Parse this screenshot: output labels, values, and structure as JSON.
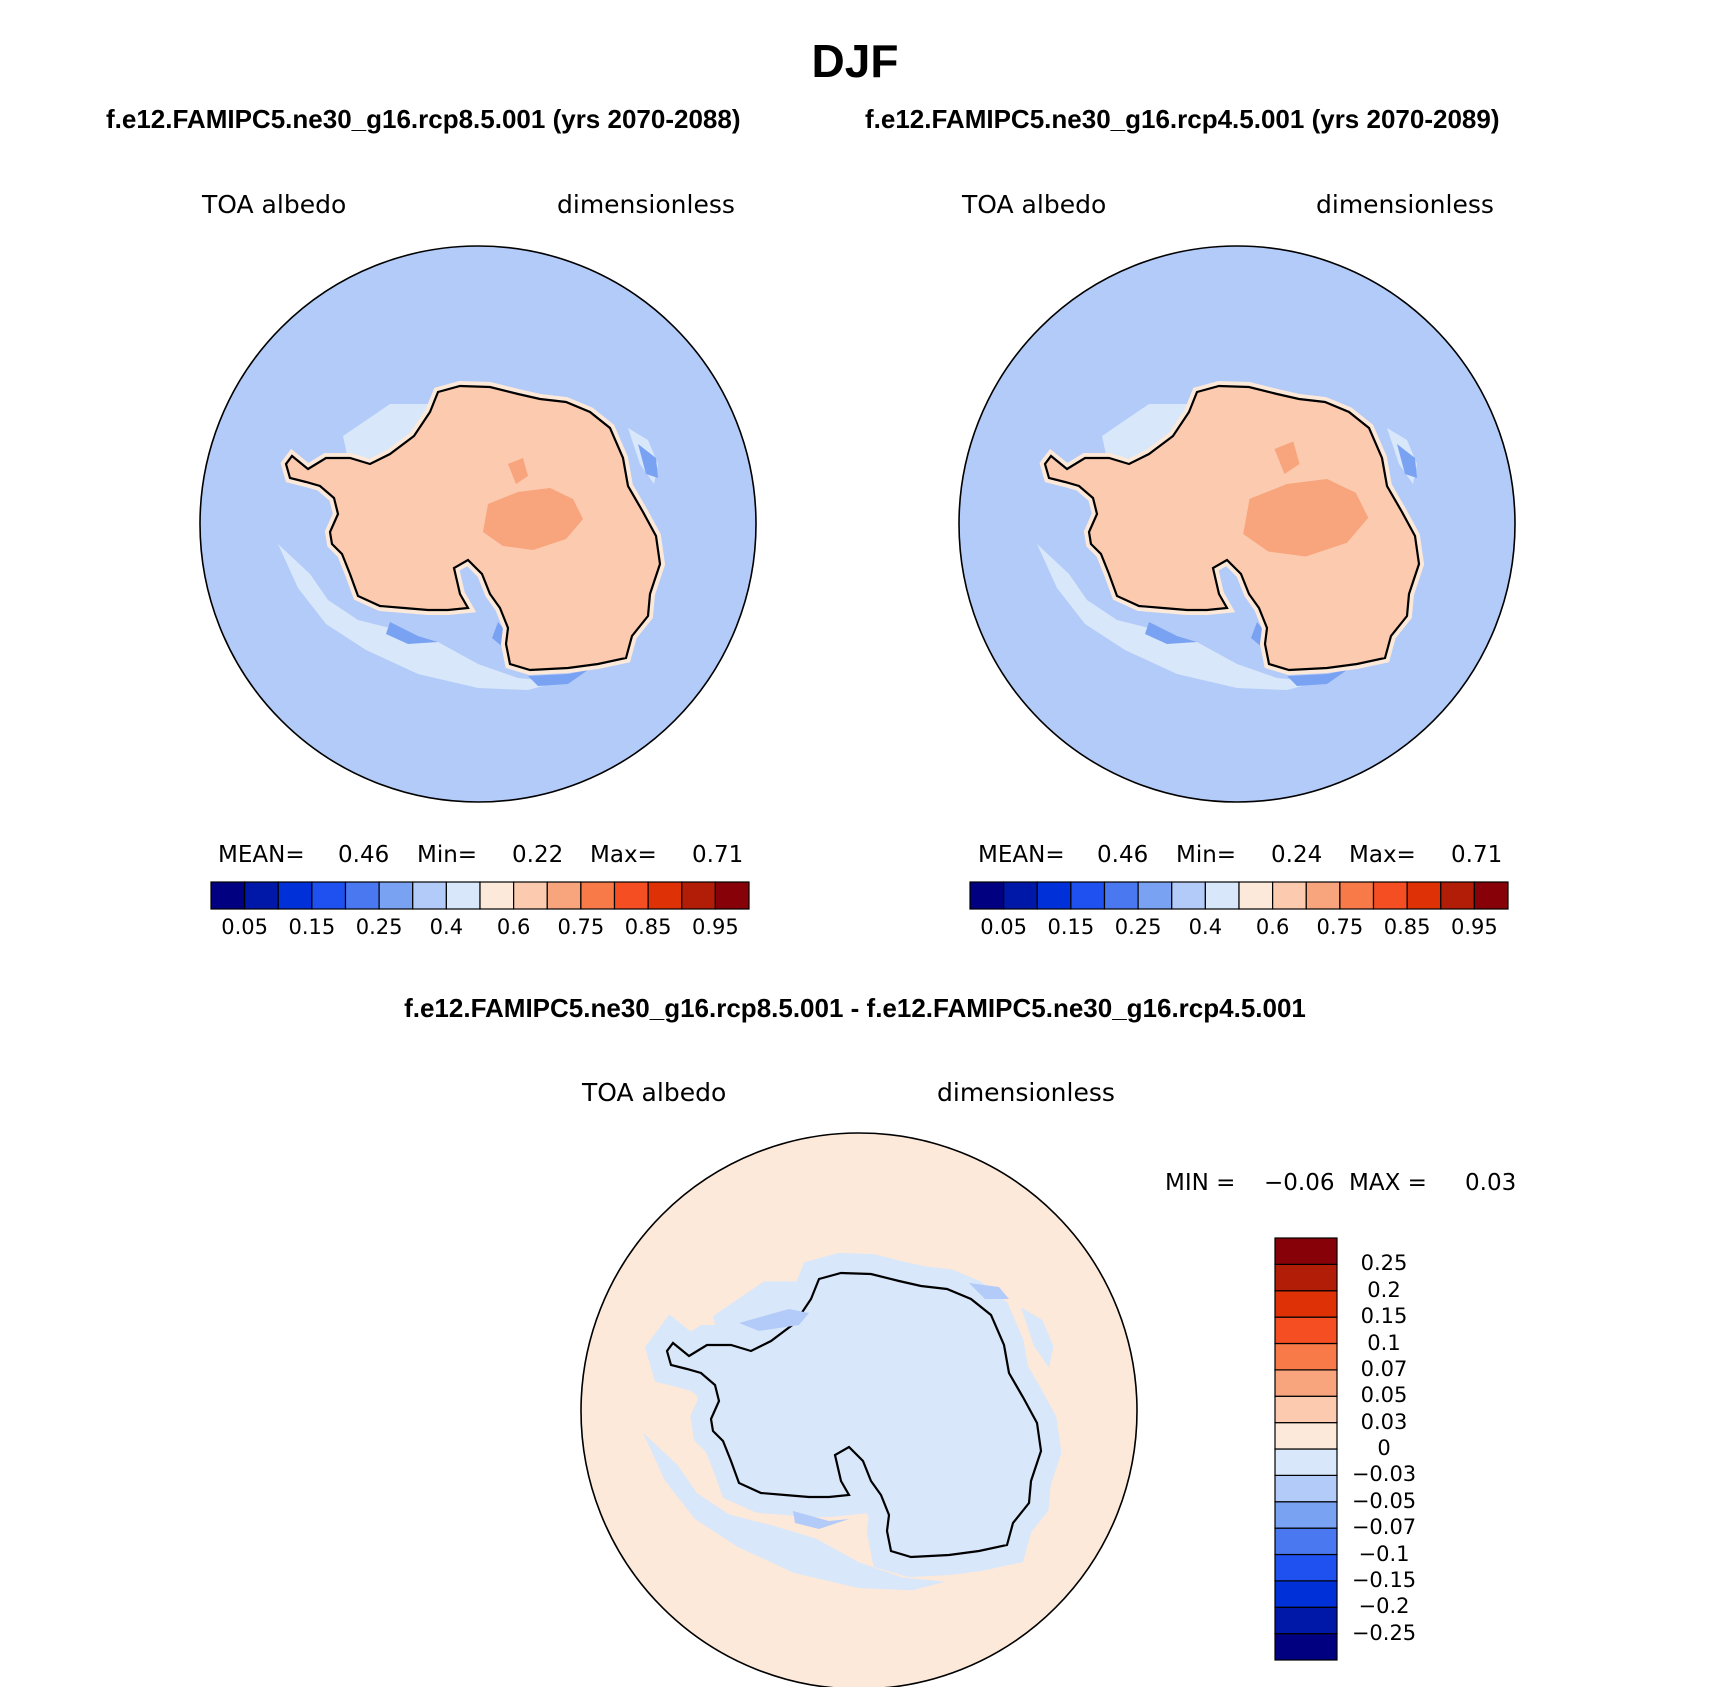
{
  "figure": {
    "title": "DJF",
    "subtitle_left": "f.e12.FAMIPC5.ne30_g16.rcp8.5.001 (yrs 2070-2088)",
    "subtitle_right": "f.e12.FAMIPC5.ne30_g16.rcp4.5.001 (yrs 2070-2089)",
    "diff_title": "f.e12.FAMIPC5.ne30_g16.rcp8.5.001 - f.e12.FAMIPC5.ne30_g16.rcp4.5.001"
  },
  "panels": [
    {
      "variable": "TOA albedo",
      "units": "dimensionless",
      "stats": {
        "mean_label": "MEAN=",
        "mean": "0.46",
        "min_label": "Min=",
        "min": "0.22",
        "max_label": "Max=",
        "max": "0.71"
      }
    },
    {
      "variable": "TOA albedo",
      "units": "dimensionless",
      "stats": {
        "mean_label": "MEAN=",
        "mean": "0.46",
        "min_label": "Min=",
        "min": "0.24",
        "max_label": "Max=",
        "max": "0.71"
      }
    },
    {
      "variable": "TOA albedo",
      "units": "dimensionless",
      "stats": {
        "min_label": "MIN =",
        "min": "−0.06",
        "max_label": "MAX =",
        "max": "0.03"
      }
    }
  ],
  "colorbar_abs": {
    "colors": [
      "#000080",
      "#0018a8",
      "#0030d8",
      "#1f50f0",
      "#4a78f0",
      "#7aa2f2",
      "#b3cbf8",
      "#d8e7fa",
      "#fde9d9",
      "#fbcaaf",
      "#f8a47c",
      "#f77a48",
      "#f54e22",
      "#de3206",
      "#b21d08",
      "#860208"
    ],
    "tick_labels": [
      "0.05",
      "0.15",
      "0.25",
      "0.4",
      "0.6",
      "0.75",
      "0.85",
      "0.95"
    ]
  },
  "colorbar_diff": {
    "colors": [
      "#000080",
      "#0018a8",
      "#0030d8",
      "#1f50f0",
      "#4a78f0",
      "#7aa2f2",
      "#b3cbf8",
      "#d8e7fa",
      "#fde9d9",
      "#fbcaaf",
      "#f8a47c",
      "#f77a48",
      "#f54e22",
      "#de3206",
      "#b21d08",
      "#860208"
    ],
    "tick_labels": [
      "0.25",
      "0.2",
      "0.15",
      "0.1",
      "0.07",
      "0.05",
      "0.03",
      "0",
      "−0.03",
      "−0.05",
      "−0.07",
      "−0.1",
      "−0.15",
      "−0.2",
      "−0.25"
    ]
  },
  "map_colors": {
    "ocean_abs": "#b3cbf8",
    "sea_ice_abs": "#d8e7fa",
    "low_abs": "#7aa2f2",
    "continent_abs": "#fbcaaf",
    "plateau_abs": "#f8a47c",
    "coast_band_abs": "#fde9d9",
    "ocean_diff": "#fde9d9",
    "continent_diff": "#d8e7fa",
    "neg_diff": "#b3cbf8"
  }
}
